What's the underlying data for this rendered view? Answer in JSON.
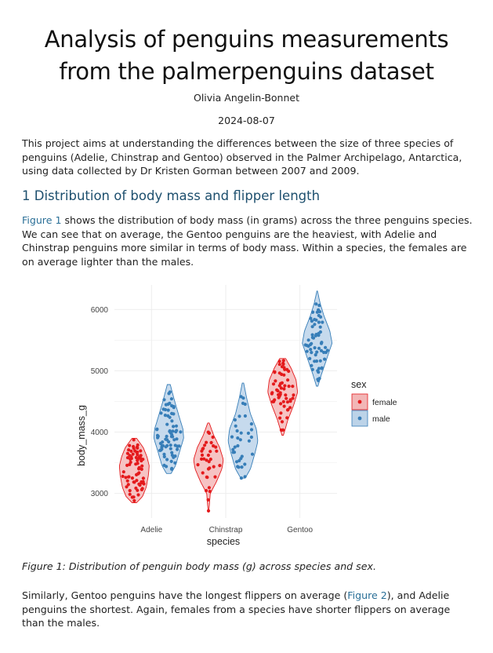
{
  "title": "Analysis of penguins measurements from the palmerpenguins dataset",
  "author": "Olivia Angelin-Bonnet",
  "date": "2024-08-07",
  "intro": "This project aims at understanding the differences between the size of three species of penguins (Adelie, Chinstrap and Gentoo) observed in the Palmer Archipelago, Antarctica, using data collected by Dr Kristen Gorman between 2007 and 2009.",
  "section1": {
    "heading": "1 Distribution of body mass and flipper length"
  },
  "para1": {
    "xref": "Figure 1",
    "text": " shows the distribution of body mass (in grams) across the three penguins species. We can see that on average, the Gentoo penguins are the heaviest, with Adelie and Chinstrap penguins more similar in terms of body mass. Within a species, the females are on average lighter than the males."
  },
  "caption": "Figure 1: Distribution of penguin body mass (g) across species and sex.",
  "para2": {
    "before": "Similarly, Gentoo penguins have the longest flippers on average (",
    "xref": "Figure 2",
    "after": "), and Adelie penguins the shortest. Again, females from a species have shorter flippers on average than the males."
  },
  "colors": {
    "female": "#e41a1c",
    "male": "#377eb8",
    "heading": "#1d4f6e",
    "link": "#2a6f97"
  },
  "chart_data": {
    "type": "violin-with-jittered-points",
    "xlabel": "species",
    "ylabel": "body_mass_g",
    "categories": [
      "Adelie",
      "Chinstrap",
      "Gentoo"
    ],
    "y_ticks": [
      3000,
      4000,
      5000,
      6000
    ],
    "ylim": [
      2600,
      6400
    ],
    "grid": true,
    "legend": {
      "title": "sex",
      "entries": [
        "female",
        "male"
      ],
      "position": "right"
    },
    "groups": [
      {
        "species": "Adelie",
        "sex": "female",
        "n": 73,
        "min": 2850,
        "max": 3900,
        "median": 3400,
        "profile": [
          [
            2850,
            0.15
          ],
          [
            2950,
            0.55
          ],
          [
            3100,
            0.8
          ],
          [
            3300,
            0.95
          ],
          [
            3450,
            1.0
          ],
          [
            3600,
            0.85
          ],
          [
            3750,
            0.6
          ],
          [
            3900,
            0.15
          ]
        ]
      },
      {
        "species": "Adelie",
        "sex": "male",
        "n": 73,
        "min": 3325,
        "max": 4775,
        "median": 4000,
        "profile": [
          [
            3325,
            0.15
          ],
          [
            3450,
            0.45
          ],
          [
            3700,
            0.75
          ],
          [
            3900,
            1.0
          ],
          [
            4050,
            0.95
          ],
          [
            4250,
            0.7
          ],
          [
            4500,
            0.4
          ],
          [
            4775,
            0.1
          ]
        ]
      },
      {
        "species": "Chinstrap",
        "sex": "female",
        "n": 34,
        "min": 2700,
        "max": 4150,
        "median": 3550,
        "profile": [
          [
            2700,
            0.02
          ],
          [
            3000,
            0.12
          ],
          [
            3200,
            0.55
          ],
          [
            3400,
            0.9
          ],
          [
            3550,
            1.0
          ],
          [
            3750,
            0.75
          ],
          [
            3950,
            0.35
          ],
          [
            4150,
            0.05
          ]
        ]
      },
      {
        "species": "Chinstrap",
        "sex": "male",
        "n": 34,
        "min": 3250,
        "max": 4800,
        "median": 3950,
        "profile": [
          [
            3250,
            0.15
          ],
          [
            3400,
            0.5
          ],
          [
            3650,
            0.8
          ],
          [
            3850,
            1.0
          ],
          [
            4050,
            0.9
          ],
          [
            4300,
            0.5
          ],
          [
            4550,
            0.25
          ],
          [
            4800,
            0.05
          ]
        ]
      },
      {
        "species": "Gentoo",
        "sex": "female",
        "n": 58,
        "min": 3950,
        "max": 5200,
        "median": 4700,
        "profile": [
          [
            3950,
            0.05
          ],
          [
            4200,
            0.35
          ],
          [
            4450,
            0.75
          ],
          [
            4650,
            1.0
          ],
          [
            4850,
            0.9
          ],
          [
            5050,
            0.55
          ],
          [
            5200,
            0.2
          ]
        ]
      },
      {
        "species": "Gentoo",
        "sex": "male",
        "n": 61,
        "min": 4750,
        "max": 6300,
        "median": 5500,
        "profile": [
          [
            4750,
            0.05
          ],
          [
            4950,
            0.3
          ],
          [
            5200,
            0.65
          ],
          [
            5450,
            1.0
          ],
          [
            5650,
            0.85
          ],
          [
            5900,
            0.45
          ],
          [
            6100,
            0.2
          ],
          [
            6300,
            0.02
          ]
        ]
      }
    ]
  }
}
